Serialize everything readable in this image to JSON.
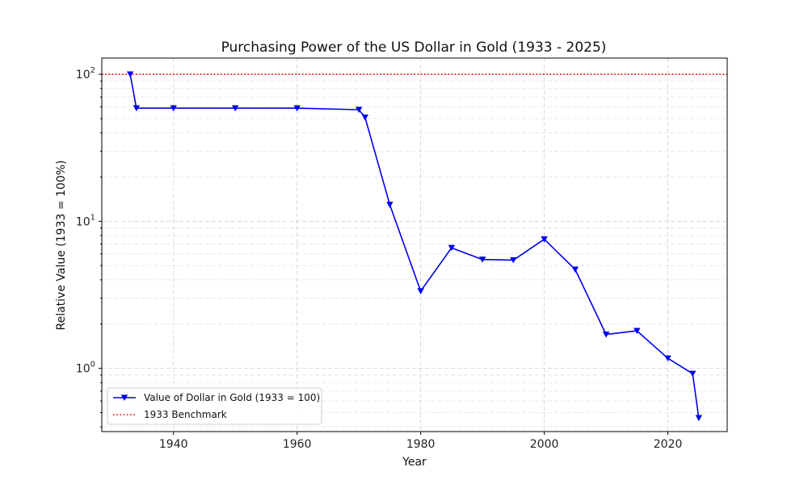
{
  "chart_data": {
    "type": "line",
    "title": "Purchasing Power of the US Dollar in Gold (1933 - 2025)",
    "xlabel": "Year",
    "ylabel": "Relative Value (1933 = 100%)",
    "yscale": "log",
    "xlim": [
      1928.4,
      2029.6
    ],
    "ylim_log10": [
      -0.43,
      2.11
    ],
    "x_ticks": [
      {
        "value": 1940,
        "label": "1940"
      },
      {
        "value": 1960,
        "label": "1960"
      },
      {
        "value": 1980,
        "label": "1980"
      },
      {
        "value": 2000,
        "label": "2000"
      },
      {
        "value": 2020,
        "label": "2020"
      }
    ],
    "y_ticks": [
      {
        "value": 1,
        "base": "10",
        "exp": "0"
      },
      {
        "value": 10,
        "base": "10",
        "exp": "1"
      },
      {
        "value": 100,
        "base": "10",
        "exp": "2"
      }
    ],
    "grid": true,
    "series": [
      {
        "name": "Value of Dollar in Gold (1933 = 100)",
        "color": "#0000ee",
        "marker": "triangle-down",
        "x": [
          1933,
          1934,
          1940,
          1950,
          1960,
          1970,
          1971,
          1975,
          1980,
          1985,
          1990,
          1995,
          2000,
          2005,
          2010,
          2015,
          2020,
          2024,
          2025
        ],
        "y": [
          100,
          58.8,
          58.8,
          58.8,
          58.8,
          57.4,
          50.9,
          12.97,
          3.35,
          6.6,
          5.5,
          5.45,
          7.55,
          4.7,
          1.7,
          1.8,
          1.17,
          0.92,
          0.46
        ]
      }
    ],
    "benchmark": {
      "name": "1933 Benchmark",
      "value": 100,
      "color": "#ee0000",
      "style": "dotted"
    },
    "legend_position": "lower-left"
  }
}
